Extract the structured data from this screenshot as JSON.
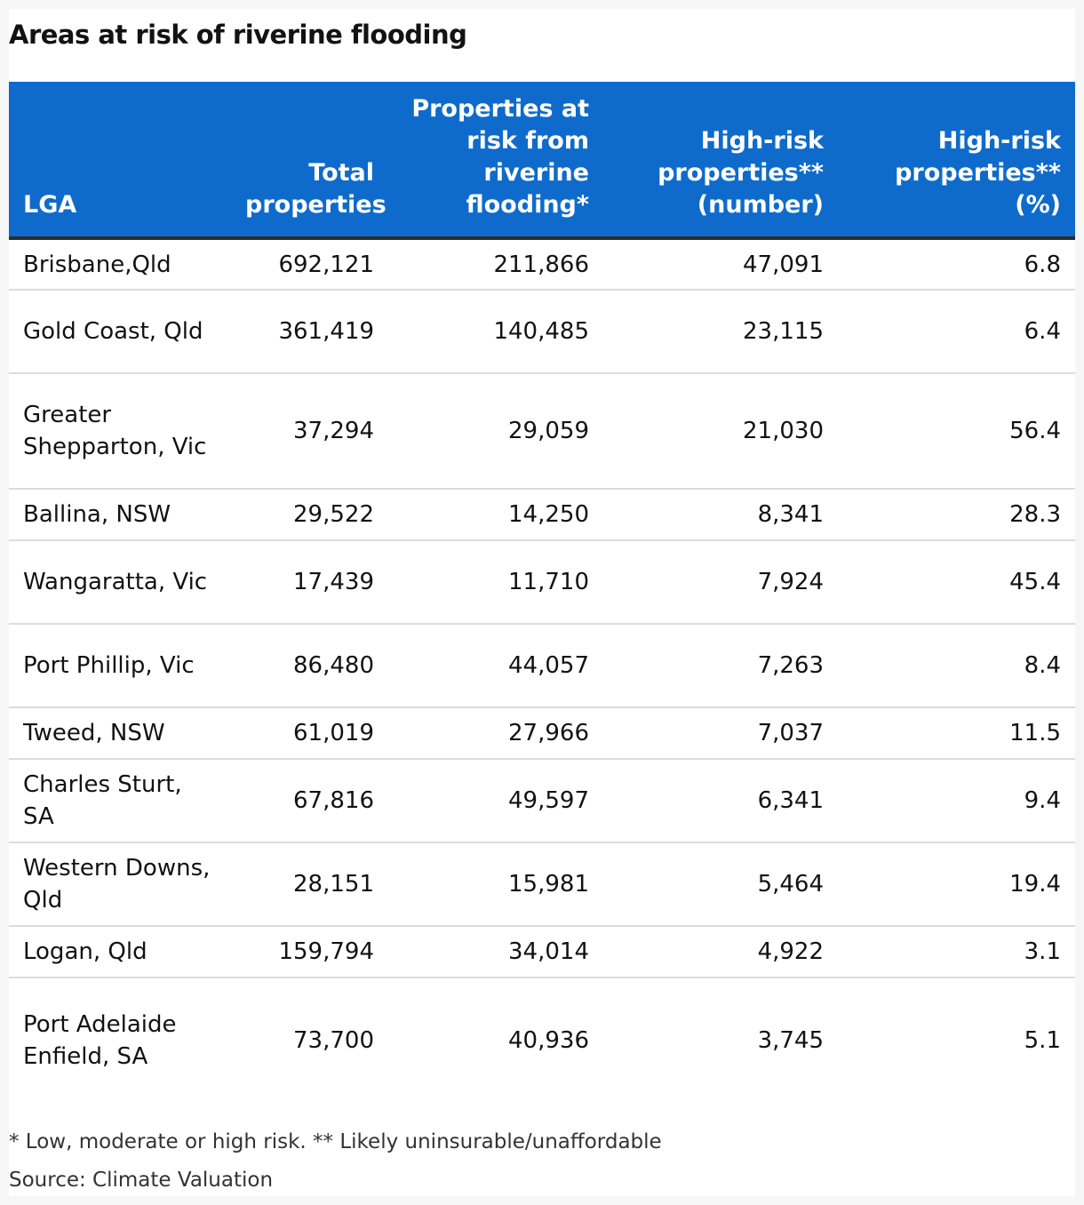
{
  "title": "Areas at risk of riverine flooding",
  "columns": [
    "LGA",
    "Total properties",
    "Properties at risk from riverine flooding*",
    "High-risk properties** (number)",
    "High-risk properties** (%)"
  ],
  "rows": [
    [
      "Brisbane,Qld",
      "692,121",
      "211,866",
      "47,091",
      "6.8"
    ],
    [
      "Gold Coast, Qld",
      "361,419",
      "140,485",
      "23,115",
      "6.4"
    ],
    [
      "Greater Shepparton, Vic",
      "37,294",
      "29,059",
      "21,030",
      "56.4"
    ],
    [
      "Ballina, NSW",
      "29,522",
      "14,250",
      "8,341",
      "28.3"
    ],
    [
      "Wangaratta, Vic",
      "17,439",
      "11,710",
      "7,924",
      "45.4"
    ],
    [
      "Port Phillip, Vic",
      "86,480",
      "44,057",
      "7,263",
      "8.4"
    ],
    [
      "Tweed, NSW",
      "61,019",
      "27,966",
      "7,037",
      "11.5"
    ],
    [
      "Charles Sturt, SA",
      "67,816",
      "49,597",
      "6,341",
      "9.4"
    ],
    [
      "Western Downs, Qld",
      "28,151",
      "15,981",
      "5,464",
      "19.4"
    ],
    [
      "Logan, Qld",
      "159,794",
      "34,014",
      "4,922",
      "3.1"
    ],
    [
      "Port Adelaide Enfield, SA",
      "73,700",
      "40,936",
      "3,745",
      "5.1"
    ]
  ],
  "notes": "* Low, moderate or high risk. ** Likely uninsurable/unaffordable",
  "source": "Source: Climate Valuation",
  "colors": {
    "header_bg": "#0f6bcb",
    "header_text": "#ffffff",
    "row_divider": "#dcdcdc",
    "header_rule": "#2b2b2b"
  },
  "chart_data": {
    "type": "table",
    "title": "Areas at risk of riverine flooding",
    "columns": [
      "LGA",
      "Total properties",
      "Properties at risk from riverine flooding*",
      "High-risk properties** (number)",
      "High-risk properties** (%)"
    ],
    "rows": [
      [
        "Brisbane,Qld",
        692121,
        211866,
        47091,
        6.8
      ],
      [
        "Gold Coast, Qld",
        361419,
        140485,
        23115,
        6.4
      ],
      [
        "Greater Shepparton, Vic",
        37294,
        29059,
        21030,
        56.4
      ],
      [
        "Ballina, NSW",
        29522,
        14250,
        8341,
        28.3
      ],
      [
        "Wangaratta, Vic",
        17439,
        11710,
        7924,
        45.4
      ],
      [
        "Port Phillip, Vic",
        86480,
        44057,
        7263,
        8.4
      ],
      [
        "Tweed, NSW",
        61019,
        27966,
        7037,
        11.5
      ],
      [
        "Charles Sturt, SA",
        67816,
        49597,
        6341,
        9.4
      ],
      [
        "Western Downs, Qld",
        28151,
        15981,
        5464,
        19.4
      ],
      [
        "Logan, Qld",
        159794,
        34014,
        4922,
        3.1
      ],
      [
        "Port Adelaide Enfield, SA",
        73700,
        40936,
        3745,
        5.1
      ]
    ]
  }
}
